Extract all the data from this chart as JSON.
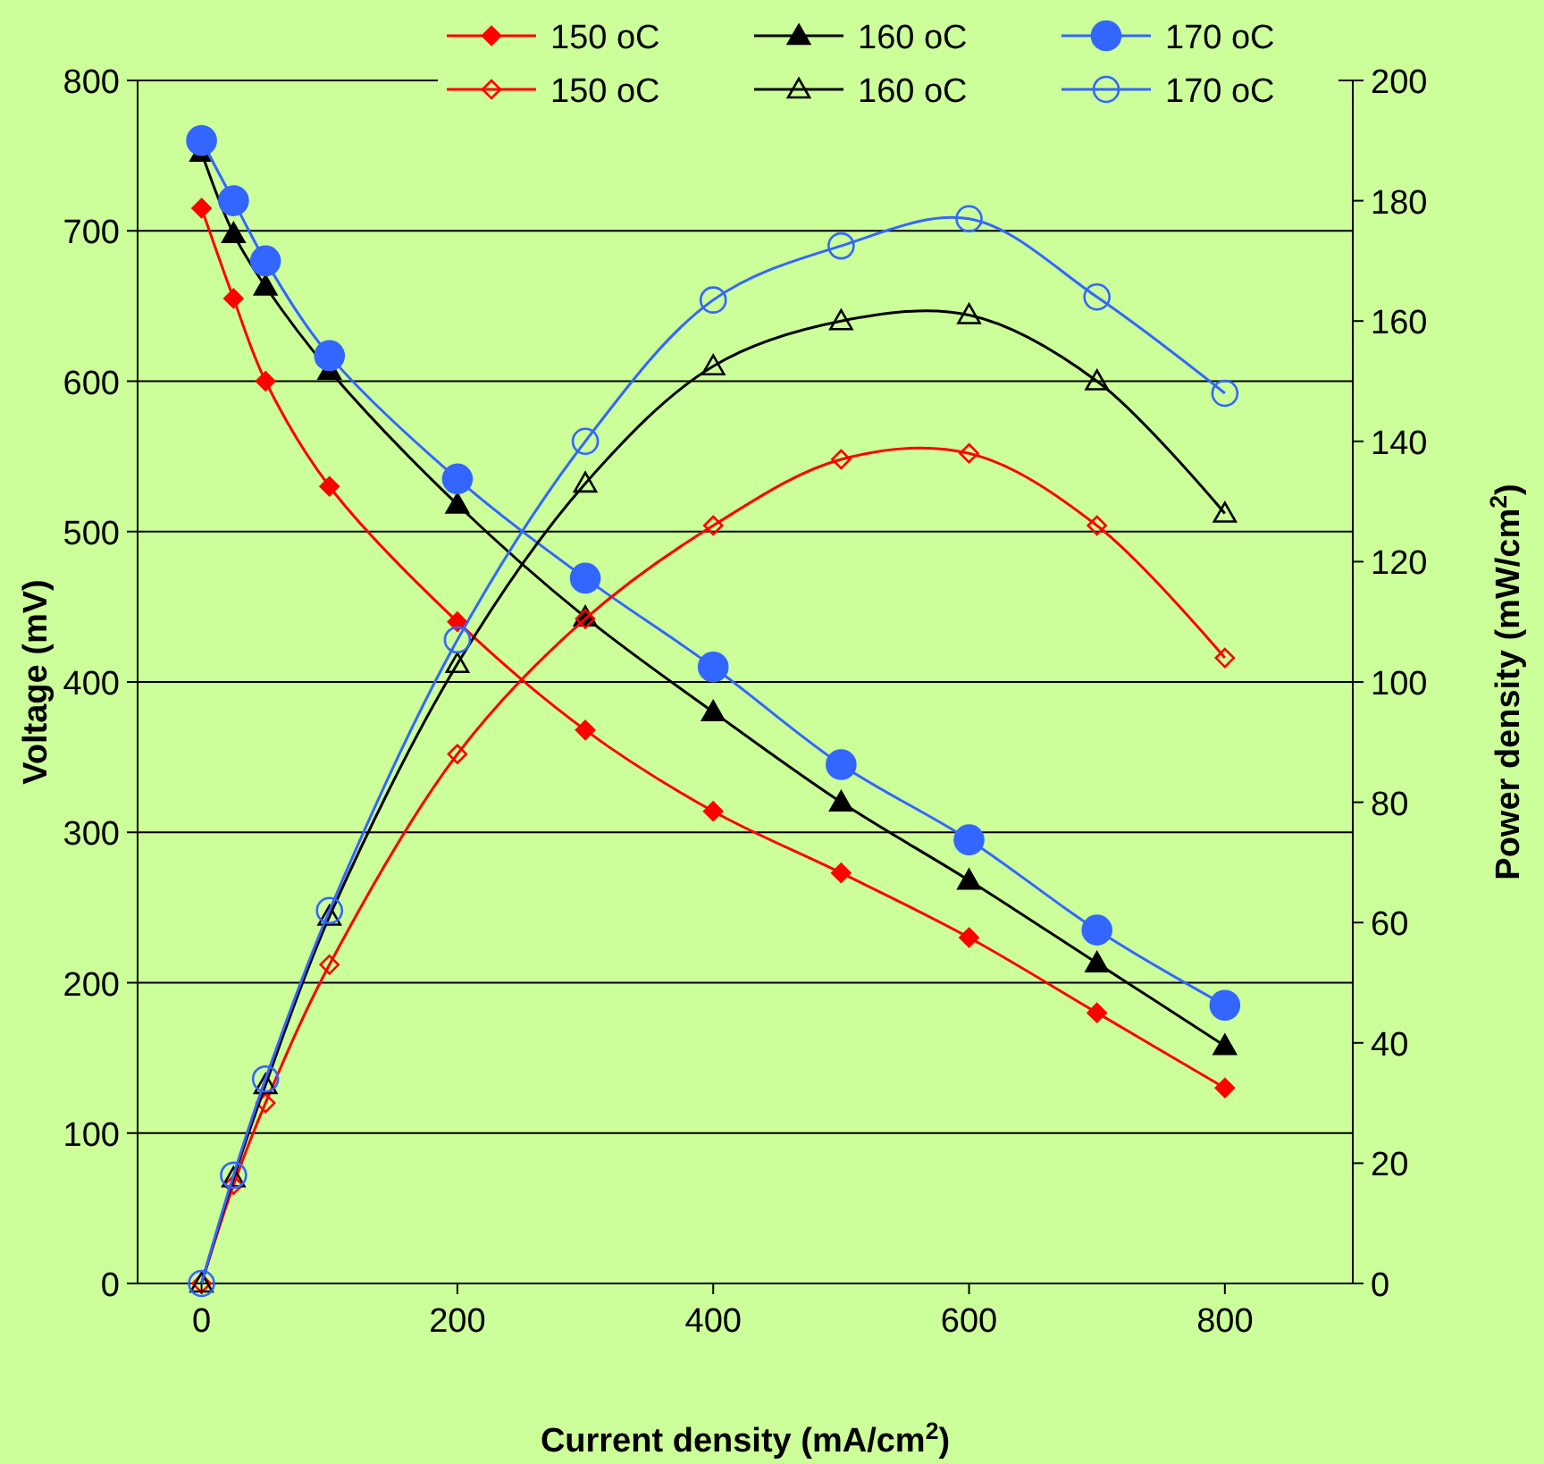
{
  "chart_data": {
    "type": "line",
    "xlabel": "Current density (mA/cm$^{2}$)",
    "ylabel": "Voltage (mV)",
    "y2label": "Power density (mW/cm$^{2}$)",
    "x": [
      0,
      25,
      50,
      100,
      200,
      300,
      400,
      500,
      600,
      700,
      800
    ],
    "xlim": [
      -50,
      900
    ],
    "xticks": [
      0,
      200,
      400,
      600,
      800
    ],
    "ylim": [
      0,
      800
    ],
    "yticks": [
      0,
      100,
      200,
      300,
      400,
      500,
      600,
      700,
      800
    ],
    "y2lim": [
      0,
      200
    ],
    "y2ticks": [
      0,
      20,
      40,
      60,
      80,
      100,
      120,
      140,
      160,
      180,
      200
    ],
    "grid": "y",
    "legend": "top right",
    "series": [
      {
        "name": "150 oC",
        "color": "#ff0000",
        "marker": "diamond",
        "values": [
          715,
          655,
          600,
          530,
          440,
          368,
          314,
          273,
          230,
          180,
          130
        ]
      },
      {
        "name": "160 oC",
        "color": "#000000",
        "marker": "triangle",
        "values": [
          752,
          698,
          663,
          607,
          518,
          443,
          380,
          320,
          268,
          213,
          158
        ]
      },
      {
        "name": "170 oC",
        "color": "#3366ff",
        "marker": "circle",
        "values": [
          760,
          720,
          680,
          617,
          535,
          469,
          410,
          345,
          295,
          235,
          185
        ]
      },
      {
        "name": "150 oC",
        "color": "#ff0000",
        "marker": "diamond",
        "axis": "y2",
        "values": [
          0,
          16.4,
          30,
          53,
          88,
          110.5,
          126,
          137,
          138,
          126,
          104
        ]
      },
      {
        "name": "160 oC",
        "color": "#000000",
        "marker": "triangle",
        "axis": "y2",
        "values": [
          0,
          17.5,
          33,
          61,
          103,
          133,
          152.5,
          160,
          161,
          150,
          128
        ]
      },
      {
        "name": "170 oC",
        "color": "#3366ff",
        "marker": "circle",
        "axis": "y2",
        "values": [
          0,
          18,
          34,
          62,
          107,
          140,
          163.5,
          172.5,
          177,
          164,
          148
        ]
      }
    ]
  }
}
